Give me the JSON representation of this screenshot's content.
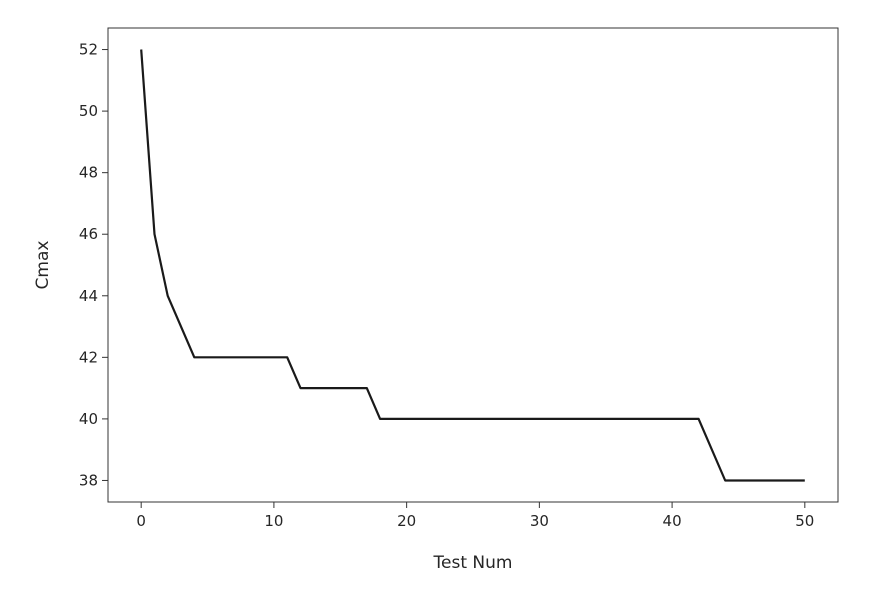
{
  "chart_data": {
    "type": "line",
    "title": "",
    "xlabel": "Test Num",
    "ylabel": "Cmax",
    "xlim": [
      -2.5,
      52.5
    ],
    "ylim": [
      37.3,
      52.7
    ],
    "xticks": [
      0,
      10,
      20,
      30,
      40,
      50
    ],
    "yticks": [
      38,
      40,
      42,
      44,
      46,
      48,
      50,
      52
    ],
    "grid": false,
    "line_color": "#1a1a1a",
    "series": [
      {
        "x": [
          0,
          1,
          2,
          4,
          11,
          12,
          17,
          18,
          42,
          44,
          50
        ],
        "y": [
          52,
          46,
          44,
          42,
          42,
          41,
          41,
          40,
          40,
          38,
          38
        ]
      }
    ]
  }
}
